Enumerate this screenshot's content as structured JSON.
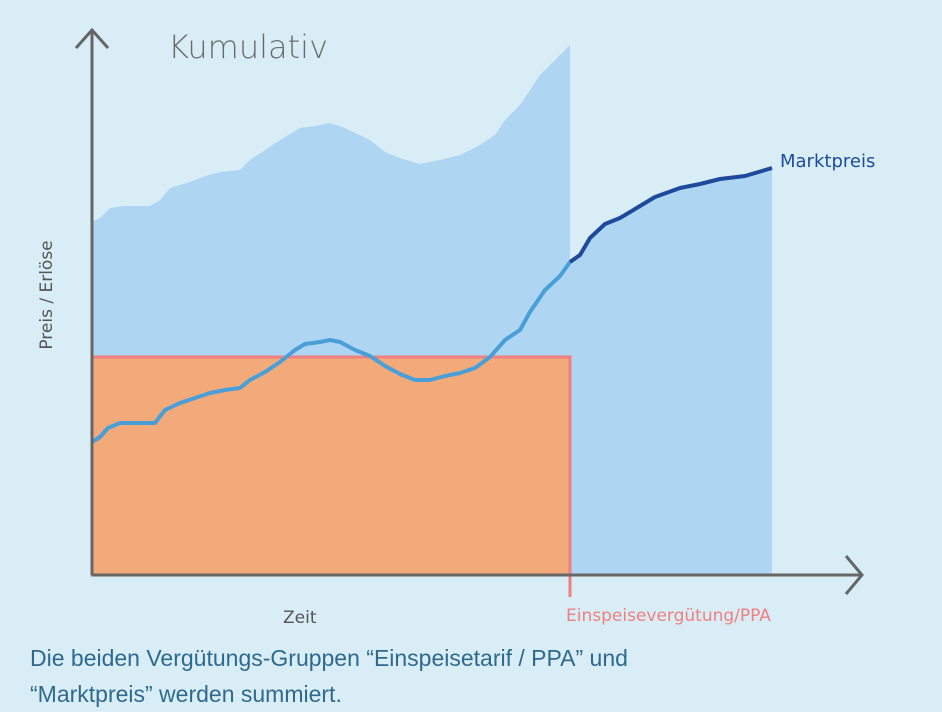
{
  "diagram": {
    "title": "Kumulativ",
    "y_axis_label": "Preis / Erlöse",
    "x_axis_label": "Zeit",
    "fixed_tariff_label": "Einspeisevergütung/PPA",
    "market_price_label": "Marktpreis",
    "caption_line1": "Die beiden Vergütungs-Gruppen “Einspeisetarif / PPA” und",
    "caption_line2": "“Marktpreis” werden summiert.",
    "colors": {
      "background": "#d9edf7",
      "market_area": "#aed6f3",
      "fixed_area": "#f2aa7a",
      "fixed_border": "#f08080",
      "price_line": "#4a9fd8",
      "market_line": "#1e4a9c",
      "axis": "#666666"
    }
  }
}
